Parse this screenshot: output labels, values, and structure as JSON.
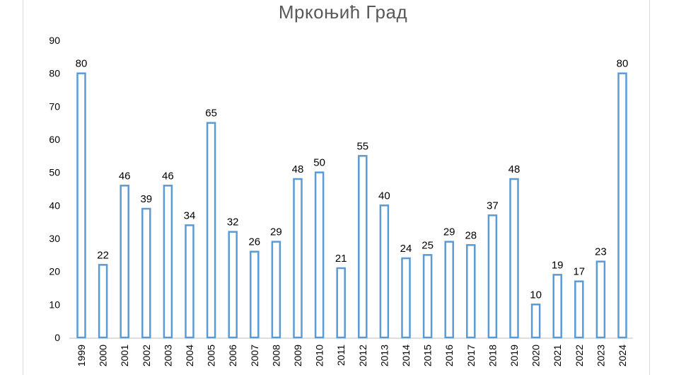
{
  "chart_data": {
    "type": "bar",
    "title": "Мркоњић Град",
    "xlabel": "",
    "ylabel": "",
    "categories": [
      "1999",
      "2000",
      "2001",
      "2002",
      "2003",
      "2004",
      "2005",
      "2006",
      "2007",
      "2008",
      "2009",
      "2010",
      "2011",
      "2012",
      "2013",
      "2014",
      "2015",
      "2016",
      "2017",
      "2018",
      "2019",
      "2020",
      "2021",
      "2022",
      "2023",
      "2024"
    ],
    "values": [
      80,
      22,
      46,
      39,
      46,
      34,
      65,
      32,
      26,
      29,
      48,
      50,
      21,
      55,
      40,
      24,
      25,
      29,
      28,
      37,
      48,
      10,
      19,
      17,
      23,
      80
    ],
    "ylim": [
      0,
      90
    ],
    "yticks": [
      0,
      10,
      20,
      30,
      40,
      50,
      60,
      70,
      80,
      90
    ],
    "grid": false,
    "legend": "none",
    "bar_style": "outline",
    "bar_color": "#5b9bd5",
    "data_labels": true
  }
}
